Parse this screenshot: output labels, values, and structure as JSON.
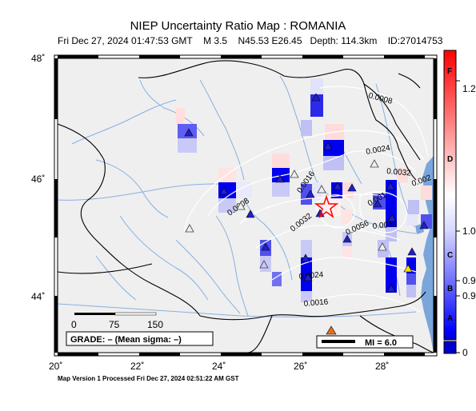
{
  "title": "NIEP Uncertainty Ratio Map : ROMANIA",
  "subtitle": {
    "datetime": "Fri Dec 27, 2024 01:47:53 GMT",
    "magnitude": "M 3.5",
    "location": "N45.53 E26.45",
    "depth": "Depth: 114.3km",
    "event_id": "ID:27014753"
  },
  "axes": {
    "lon_ticks": [
      "20˚",
      "22˚",
      "24˚",
      "26˚",
      "28˚"
    ],
    "lat_ticks": [
      "48˚",
      "46˚",
      "44˚"
    ]
  },
  "contour_labels": [
    "0.0008",
    "0.0024",
    "0.0032",
    "0.002",
    "0.0016",
    "0.0008",
    "0.0032",
    "0.001",
    "0.0056",
    "0.0048",
    "0.0024",
    "0.0016"
  ],
  "scale_bar": {
    "labels": [
      "0",
      "75",
      "150"
    ]
  },
  "grade_text": "GRADE: – (Mean sigma: –)",
  "mi_legend": "MI = 6.0",
  "colorbar": {
    "letters": [
      "F",
      "D",
      "C",
      "B",
      "A"
    ],
    "values": [
      "1.2",
      "1.0",
      "0.9",
      "0.9",
      "0"
    ]
  },
  "footer": "Map Version 1 Processed Fri Dec 27, 2024 02:51:22 AM GST",
  "colors": {
    "land": "#efefef",
    "sea": "#7aa6dc",
    "rivers": "#87b0e0",
    "contours": "#ffffff",
    "epicenter": "#ff0000"
  }
}
